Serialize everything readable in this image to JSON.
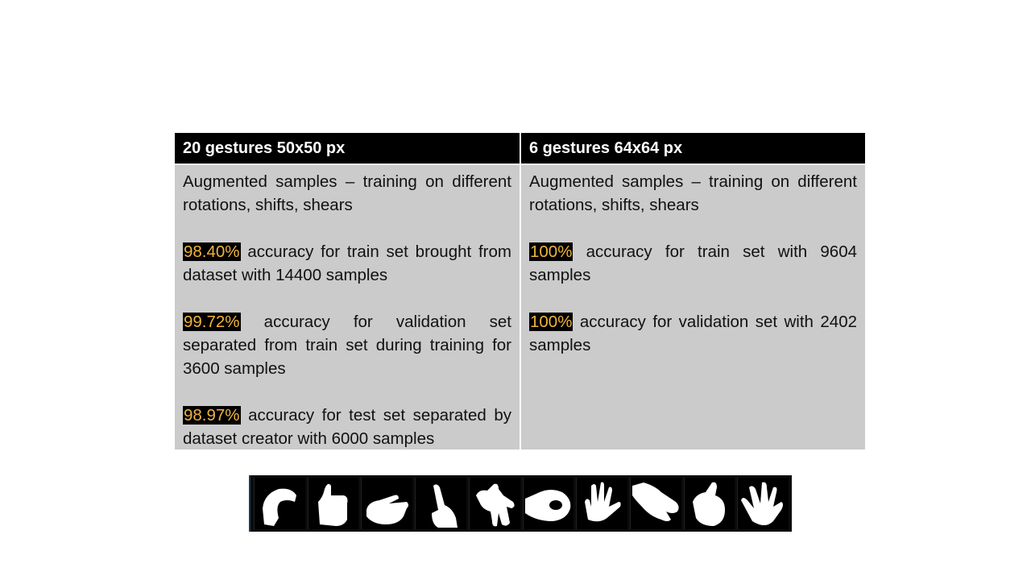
{
  "table": {
    "col1": {
      "header": "20 gestures 50x50 px",
      "augmented": "Augmented samples – training on different rotations, shifts, shears",
      "train": {
        "pct": "98.40%",
        "text": " accuracy for train set brought from dataset with 14400 samples"
      },
      "validation": {
        "pct": "99.72%",
        "text": " accuracy for validation set separated from train set during training for 3600 samples"
      },
      "test": {
        "pct": "98.97%",
        "text": " accuracy for test set separated by dataset creator with 6000 samples"
      }
    },
    "col2": {
      "header": "6 gestures 64x64 px",
      "augmented": "Augmented samples – training on different rotations, shifts, shears",
      "train": {
        "pct": "100%",
        "text": " accuracy for train set with 9604 samples"
      },
      "validation": {
        "pct": "100%",
        "text": " accuracy for validation set with 2402 samples"
      }
    }
  },
  "strip": {
    "thumbnails": [
      "hand-curl-icon",
      "hand-thumb-up-icon",
      "hand-point-icon",
      "hand-finger-icon",
      "hand-v-icon",
      "hand-ok-icon",
      "hand-open-icon",
      "hand-pinch-icon",
      "hand-thumb-icon",
      "hand-spread-icon"
    ]
  }
}
